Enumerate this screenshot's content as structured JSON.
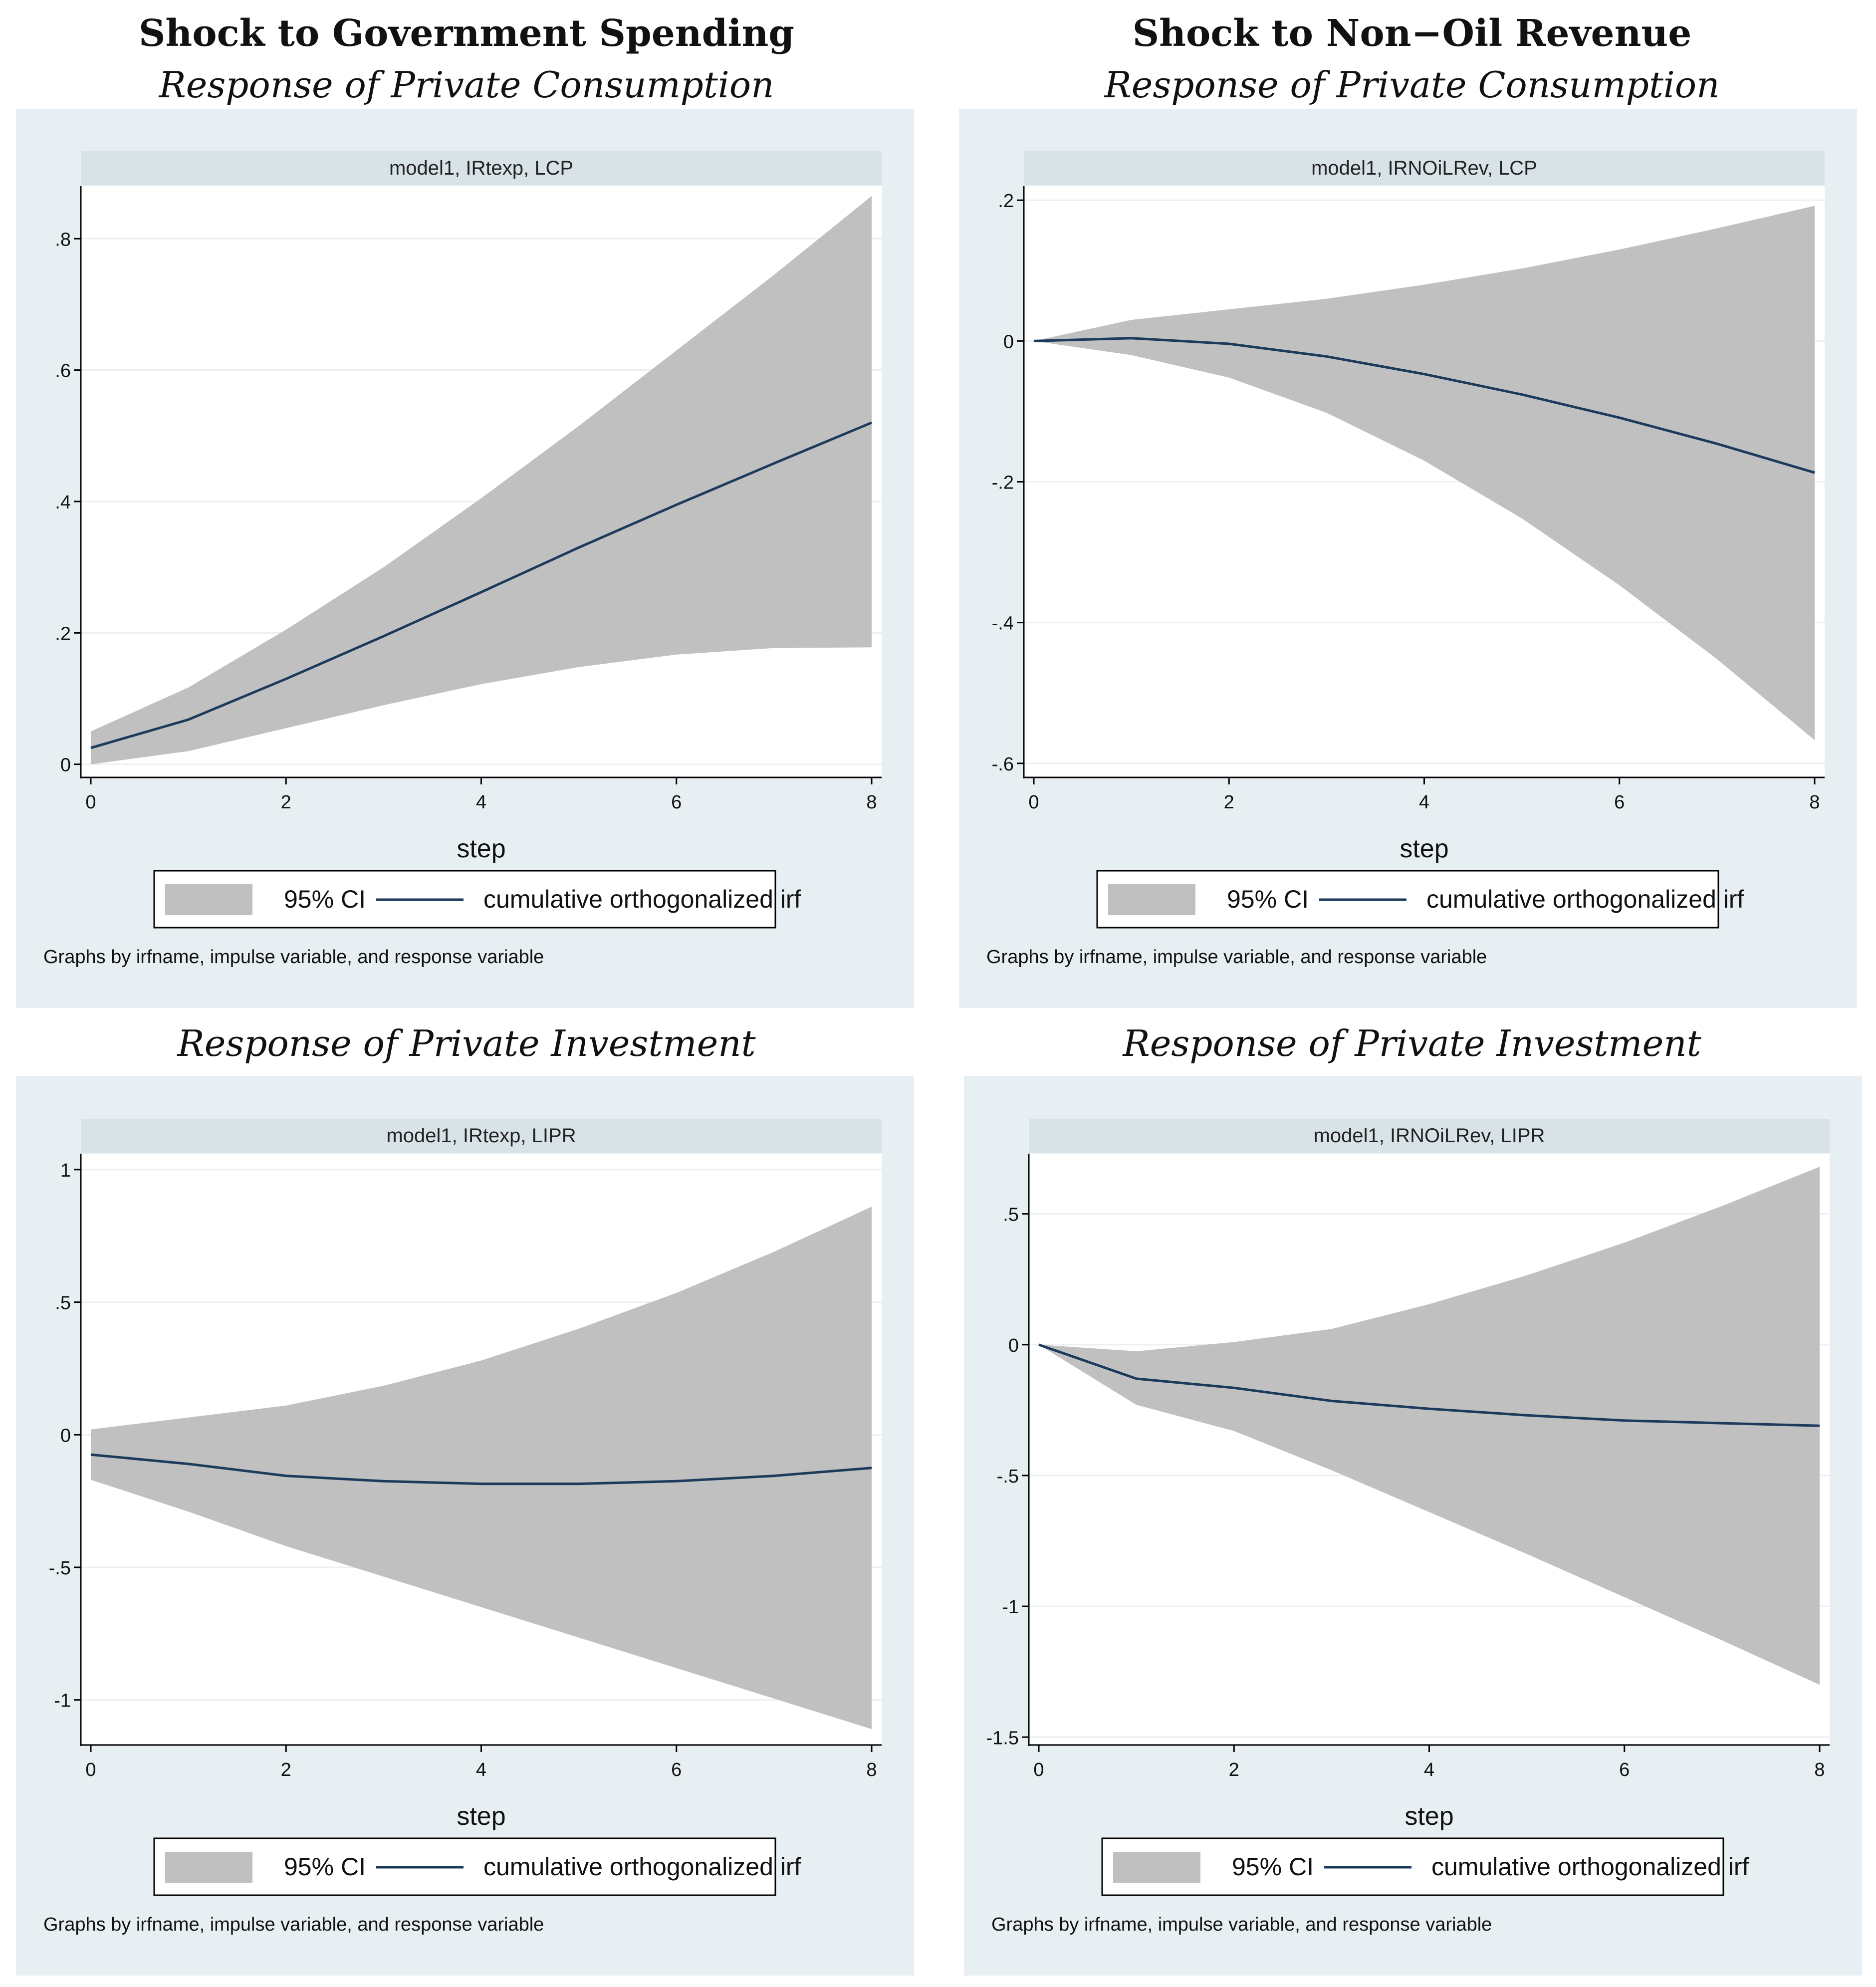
{
  "columns": [
    {
      "title": "Shock to Government Spending"
    },
    {
      "title": "Shock to Non−Oil Revenue"
    }
  ],
  "row_titles": {
    "top": "Response of Private Consumption",
    "bottom": "Response of Private Investment"
  },
  "legend": {
    "ci_label": "95% CI",
    "line_label": "cumulative orthogonalized irf"
  },
  "note": "Graphs by irfname, impulse variable, and response variable",
  "colors": {
    "panel_bg": "#e8eff2",
    "strip_bg": "#d8e3e8",
    "ci_fill": "#c0c0c0",
    "irf_line": "#1b3a5c",
    "grid": "#eaf0f3"
  },
  "chart_data": [
    {
      "type": "area",
      "panel": "top-left",
      "strip": "model1, IRtexp, LCP",
      "title": "Response of Private Consumption",
      "xlabel": "step",
      "ylabel": "",
      "x": [
        0,
        1,
        2,
        3,
        4,
        5,
        6,
        7,
        8
      ],
      "xticks": [
        0,
        2,
        4,
        6,
        8
      ],
      "xtick_labels": [
        "0",
        "2",
        "4",
        "6",
        "8"
      ],
      "ylim": [
        -0.02,
        0.88
      ],
      "yticks": [
        0,
        0.2,
        0.4,
        0.6,
        0.8
      ],
      "ytick_labels": [
        "0",
        ".2",
        ".4",
        ".6",
        ".8"
      ],
      "series": [
        {
          "name": "cumulative orthogonalized irf",
          "values": [
            0.025,
            0.068,
            0.13,
            0.195,
            0.262,
            0.33,
            0.395,
            0.458,
            0.52
          ]
        },
        {
          "name": "95% CI lower",
          "values": [
            0.0,
            0.02,
            0.055,
            0.09,
            0.122,
            0.148,
            0.167,
            0.177,
            0.178
          ]
        },
        {
          "name": "95% CI upper",
          "values": [
            0.05,
            0.117,
            0.205,
            0.3,
            0.405,
            0.515,
            0.63,
            0.745,
            0.865
          ]
        }
      ]
    },
    {
      "type": "area",
      "panel": "top-right",
      "strip": "model1, IRNOiLRev, LCP",
      "title": "Response of Private Consumption",
      "xlabel": "step",
      "ylabel": "",
      "x": [
        0,
        1,
        2,
        3,
        4,
        5,
        6,
        7,
        8
      ],
      "xticks": [
        0,
        2,
        4,
        6,
        8
      ],
      "xtick_labels": [
        "0",
        "2",
        "4",
        "6",
        "8"
      ],
      "ylim": [
        -0.62,
        0.22
      ],
      "yticks": [
        -0.6,
        -0.4,
        -0.2,
        0,
        0.2
      ],
      "ytick_labels": [
        "-.6",
        "-.4",
        "-.2",
        "0",
        ".2"
      ],
      "series": [
        {
          "name": "cumulative orthogonalized irf",
          "values": [
            0.0,
            0.004,
            -0.004,
            -0.022,
            -0.047,
            -0.076,
            -0.109,
            -0.146,
            -0.187
          ]
        },
        {
          "name": "95% CI lower",
          "values": [
            0.0,
            -0.02,
            -0.052,
            -0.102,
            -0.17,
            -0.252,
            -0.347,
            -0.452,
            -0.567
          ]
        },
        {
          "name": "95% CI upper",
          "values": [
            0.0,
            0.03,
            0.045,
            0.06,
            0.08,
            0.103,
            0.13,
            0.16,
            0.192
          ]
        }
      ]
    },
    {
      "type": "area",
      "panel": "bottom-left",
      "strip": "model1, IRtexp, LIPR",
      "title": "Response of Private Investment",
      "xlabel": "step",
      "ylabel": "",
      "x": [
        0,
        1,
        2,
        3,
        4,
        5,
        6,
        7,
        8
      ],
      "xticks": [
        0,
        2,
        4,
        6,
        8
      ],
      "xtick_labels": [
        "0",
        "2",
        "4",
        "6",
        "8"
      ],
      "ylim": [
        -1.17,
        1.06
      ],
      "yticks": [
        -1,
        -0.5,
        0,
        0.5,
        1
      ],
      "ytick_labels": [
        "-1",
        "-.5",
        "0",
        ".5",
        "1"
      ],
      "series": [
        {
          "name": "cumulative orthogonalized irf",
          "values": [
            -0.075,
            -0.11,
            -0.155,
            -0.175,
            -0.185,
            -0.185,
            -0.175,
            -0.155,
            -0.125
          ]
        },
        {
          "name": "95% CI lower",
          "values": [
            -0.17,
            -0.29,
            -0.42,
            -0.535,
            -0.65,
            -0.765,
            -0.88,
            -0.995,
            -1.11
          ]
        },
        {
          "name": "95% CI upper",
          "values": [
            0.02,
            0.065,
            0.11,
            0.185,
            0.28,
            0.4,
            0.535,
            0.69,
            0.86
          ]
        }
      ]
    },
    {
      "type": "area",
      "panel": "bottom-right",
      "strip": "model1, IRNOiLRev, LIPR",
      "title": "Response of Private Investment",
      "xlabel": "step",
      "ylabel": "",
      "x": [
        0,
        1,
        2,
        3,
        4,
        5,
        6,
        7,
        8
      ],
      "xticks": [
        0,
        2,
        4,
        6,
        8
      ],
      "xtick_labels": [
        "0",
        "2",
        "4",
        "6",
        "8"
      ],
      "ylim": [
        -1.53,
        0.73
      ],
      "yticks": [
        -1.5,
        -1,
        -0.5,
        0,
        0.5
      ],
      "ytick_labels": [
        "-1.5",
        "-1",
        "-.5",
        "0",
        ".5"
      ],
      "series": [
        {
          "name": "cumulative orthogonalized irf",
          "values": [
            0.0,
            -0.13,
            -0.165,
            -0.215,
            -0.245,
            -0.27,
            -0.29,
            -0.3,
            -0.31
          ]
        },
        {
          "name": "95% CI lower",
          "values": [
            0.0,
            -0.23,
            -0.33,
            -0.48,
            -0.64,
            -0.8,
            -0.965,
            -1.13,
            -1.3
          ]
        },
        {
          "name": "95% CI upper",
          "values": [
            0.0,
            -0.025,
            0.01,
            0.06,
            0.155,
            0.265,
            0.39,
            0.53,
            0.68
          ]
        }
      ]
    }
  ]
}
